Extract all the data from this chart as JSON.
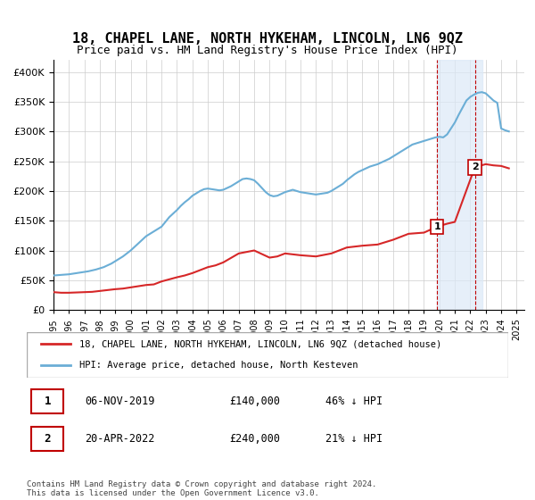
{
  "title": "18, CHAPEL LANE, NORTH HYKEHAM, LINCOLN, LN6 9QZ",
  "subtitle": "Price paid vs. HM Land Registry's House Price Index (HPI)",
  "title_fontsize": 11,
  "subtitle_fontsize": 9,
  "hpi_color": "#6baed6",
  "price_color": "#d62728",
  "highlight_color_bg": "#dce9f7",
  "highlight_border": "#c00000",
  "ylabel_ticks": [
    "£0",
    "£50K",
    "£100K",
    "£150K",
    "£200K",
    "£250K",
    "£300K",
    "£350K",
    "£400K"
  ],
  "ytick_values": [
    0,
    50000,
    100000,
    150000,
    200000,
    250000,
    300000,
    350000,
    400000
  ],
  "ylim": [
    0,
    420000
  ],
  "xlim_start": 1995.0,
  "xlim_end": 2025.5,
  "x_ticks": [
    1995,
    1996,
    1997,
    1998,
    1999,
    2000,
    2001,
    2002,
    2003,
    2004,
    2005,
    2006,
    2007,
    2008,
    2009,
    2010,
    2011,
    2012,
    2013,
    2014,
    2015,
    2016,
    2017,
    2018,
    2019,
    2020,
    2021,
    2022,
    2023,
    2024,
    2025
  ],
  "event1_x": 2019.85,
  "event1_y": 140000,
  "event1_label": "1",
  "event2_x": 2022.3,
  "event2_y": 240000,
  "event2_label": "2",
  "legend_line1": "18, CHAPEL LANE, NORTH HYKEHAM, LINCOLN, LN6 9QZ (detached house)",
  "legend_line2": "HPI: Average price, detached house, North Kesteven",
  "table_row1": [
    "1",
    "06-NOV-2019",
    "£140,000",
    "46% ↓ HPI"
  ],
  "table_row2": [
    "2",
    "20-APR-2022",
    "£240,000",
    "21% ↓ HPI"
  ],
  "footer": "Contains HM Land Registry data © Crown copyright and database right 2024.\nThis data is licensed under the Open Government Licence v3.0.",
  "hpi_x": [
    1995.0,
    1995.25,
    1995.5,
    1995.75,
    1996.0,
    1996.25,
    1996.5,
    1996.75,
    1997.0,
    1997.25,
    1997.5,
    1997.75,
    1998.0,
    1998.25,
    1998.5,
    1998.75,
    1999.0,
    1999.25,
    1999.5,
    1999.75,
    2000.0,
    2000.25,
    2000.5,
    2000.75,
    2001.0,
    2001.25,
    2001.5,
    2001.75,
    2002.0,
    2002.25,
    2002.5,
    2002.75,
    2003.0,
    2003.25,
    2003.5,
    2003.75,
    2004.0,
    2004.25,
    2004.5,
    2004.75,
    2005.0,
    2005.25,
    2005.5,
    2005.75,
    2006.0,
    2006.25,
    2006.5,
    2006.75,
    2007.0,
    2007.25,
    2007.5,
    2007.75,
    2008.0,
    2008.25,
    2008.5,
    2008.75,
    2009.0,
    2009.25,
    2009.5,
    2009.75,
    2010.0,
    2010.25,
    2010.5,
    2010.75,
    2011.0,
    2011.25,
    2011.5,
    2011.75,
    2012.0,
    2012.25,
    2012.5,
    2012.75,
    2013.0,
    2013.25,
    2013.5,
    2013.75,
    2014.0,
    2014.25,
    2014.5,
    2014.75,
    2015.0,
    2015.25,
    2015.5,
    2015.75,
    2016.0,
    2016.25,
    2016.5,
    2016.75,
    2017.0,
    2017.25,
    2017.5,
    2017.75,
    2018.0,
    2018.25,
    2018.5,
    2018.75,
    2019.0,
    2019.25,
    2019.5,
    2019.75,
    2020.0,
    2020.25,
    2020.5,
    2020.75,
    2021.0,
    2021.25,
    2021.5,
    2021.75,
    2022.0,
    2022.25,
    2022.5,
    2022.75,
    2023.0,
    2023.25,
    2023.5,
    2023.75,
    2024.0,
    2024.25,
    2024.5
  ],
  "hpi_y": [
    58000,
    58500,
    59000,
    59500,
    60000,
    61000,
    62000,
    63000,
    64000,
    65000,
    66500,
    68000,
    70000,
    72000,
    75000,
    78000,
    82000,
    86000,
    90000,
    95000,
    100000,
    106000,
    112000,
    118000,
    124000,
    128000,
    132000,
    136000,
    140000,
    148000,
    156000,
    162000,
    168000,
    175000,
    181000,
    186000,
    192000,
    196000,
    200000,
    203000,
    204000,
    203000,
    202000,
    201000,
    202000,
    205000,
    208000,
    212000,
    216000,
    220000,
    221000,
    220000,
    218000,
    212000,
    205000,
    198000,
    193000,
    191000,
    192000,
    195000,
    198000,
    200000,
    202000,
    200000,
    198000,
    197000,
    196000,
    195000,
    194000,
    195000,
    196000,
    197000,
    200000,
    204000,
    208000,
    212000,
    218000,
    223000,
    228000,
    232000,
    235000,
    238000,
    241000,
    243000,
    245000,
    248000,
    251000,
    254000,
    258000,
    262000,
    266000,
    270000,
    274000,
    278000,
    280000,
    282000,
    284000,
    286000,
    288000,
    290000,
    291000,
    290000,
    295000,
    305000,
    315000,
    328000,
    340000,
    352000,
    358000,
    362000,
    365000,
    366000,
    364000,
    358000,
    352000,
    348000,
    305000,
    302000,
    300000
  ],
  "price_x": [
    1995.0,
    1995.5,
    1996.0,
    1997.0,
    1997.5,
    1998.0,
    1999.0,
    1999.5,
    2000.0,
    2000.5,
    2001.0,
    2001.5,
    2002.0,
    2003.0,
    2003.5,
    2004.0,
    2005.0,
    2005.5,
    2006.0,
    2007.0,
    2008.0,
    2009.0,
    2009.5,
    2010.0,
    2011.0,
    2012.0,
    2013.0,
    2014.0,
    2015.0,
    2016.0,
    2017.0,
    2018.0,
    2019.0,
    2019.85,
    2020.5,
    2021.0,
    2022.3,
    2023.0,
    2023.5,
    2024.0,
    2024.5
  ],
  "price_y": [
    30000,
    29000,
    29000,
    30000,
    30500,
    32000,
    35000,
    36000,
    38000,
    40000,
    42000,
    43000,
    48000,
    55000,
    58000,
    62000,
    72000,
    75000,
    80000,
    95000,
    100000,
    88000,
    90000,
    95000,
    92000,
    90000,
    95000,
    105000,
    108000,
    110000,
    118000,
    128000,
    130000,
    140000,
    145000,
    148000,
    240000,
    245000,
    243000,
    242000,
    238000
  ]
}
